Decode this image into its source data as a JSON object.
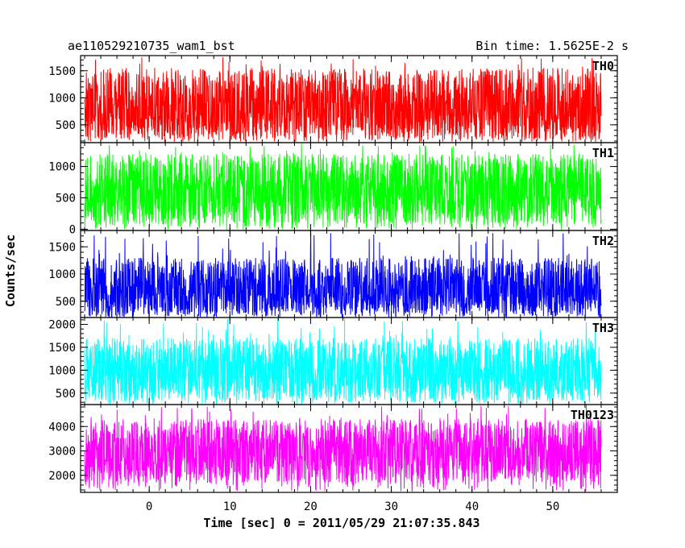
{
  "header": {
    "title_left": "ae110529210735_wam1_bst",
    "title_right": "Bin time: 1.5625E-2 s"
  },
  "axes": {
    "xlabel": "Time [sec] 0 = 2011/05/29 21:07:35.843",
    "ylabel": "Counts/sec"
  },
  "chart_data": {
    "type": "line",
    "x_range": [
      -8.5,
      58
    ],
    "x_ticks": [
      0,
      10,
      20,
      30,
      40,
      50
    ],
    "x_tick_labels": [
      "0",
      "10",
      "20",
      "30",
      "40",
      "50"
    ],
    "data_x_range": [
      -8,
      56
    ],
    "bin_time": 0.015625,
    "panels": [
      {
        "name": "TH0",
        "color": "#ff0000",
        "ylim": [
          170,
          1780
        ],
        "y_ticks": [
          500,
          1000,
          1500
        ],
        "y_tick_labels": [
          "500",
          "1000",
          "1500"
        ],
        "level_start": 760,
        "level_end": 880,
        "envelope_low": 250,
        "envelope_high": 1550,
        "spike_max": 1760
      },
      {
        "name": "TH1",
        "color": "#00ff00",
        "ylim": [
          -20,
          1380
        ],
        "y_ticks": [
          0,
          500,
          1000
        ],
        "y_tick_labels": [
          "0",
          "500",
          "1000"
        ],
        "level_start": 620,
        "level_end": 620,
        "envelope_low": 80,
        "envelope_high": 1200,
        "spike_max": 1370
      },
      {
        "name": "TH2",
        "color": "#0000ff",
        "ylim": [
          200,
          1800
        ],
        "y_ticks": [
          500,
          1000,
          1500
        ],
        "y_tick_labels": [
          "500",
          "1000",
          "1500"
        ],
        "level_start": 700,
        "level_end": 700,
        "envelope_low": 250,
        "envelope_high": 1300,
        "spike_max": 1790
      },
      {
        "name": "TH3",
        "color": "#00ffff",
        "ylim": [
          250,
          2150
        ],
        "y_ticks": [
          500,
          1000,
          1500,
          2000
        ],
        "y_tick_labels": [
          "500",
          "1000",
          "1500",
          "2000"
        ],
        "level_start": 1000,
        "level_end": 1000,
        "envelope_low": 350,
        "envelope_high": 1700,
        "spike_max": 2140
      },
      {
        "name": "TH0123",
        "color": "#ff00ff",
        "ylim": [
          1300,
          4900
        ],
        "y_ticks": [
          2000,
          3000,
          4000
        ],
        "y_tick_labels": [
          "2000",
          "3000",
          "4000"
        ],
        "level_start": 2850,
        "level_end": 3050,
        "envelope_low": 1700,
        "envelope_high": 4300,
        "spike_max": 4880
      }
    ]
  }
}
